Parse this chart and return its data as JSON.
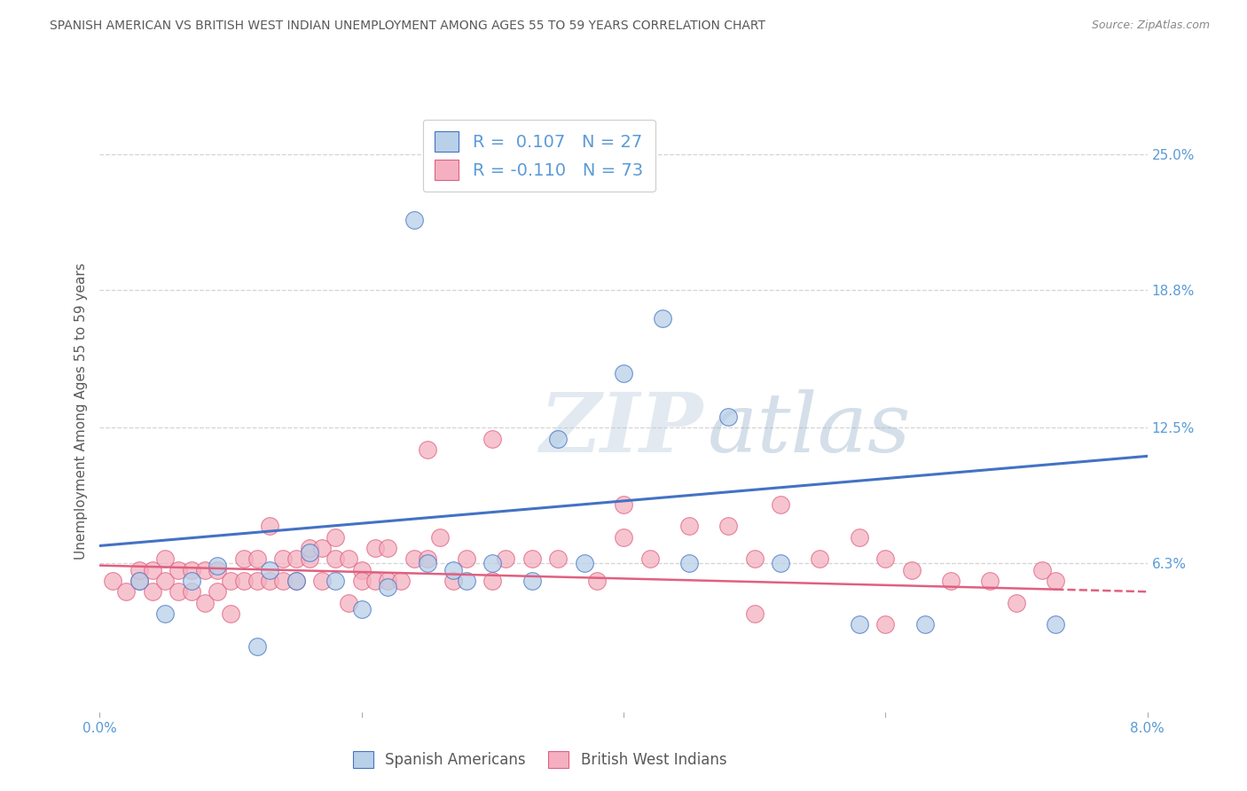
{
  "title": "SPANISH AMERICAN VS BRITISH WEST INDIAN UNEMPLOYMENT AMONG AGES 55 TO 59 YEARS CORRELATION CHART",
  "source": "Source: ZipAtlas.com",
  "ylabel": "Unemployment Among Ages 55 to 59 years",
  "xlim": [
    0.0,
    0.08
  ],
  "ylim": [
    -0.005,
    0.27
  ],
  "xticks": [
    0.0,
    0.02,
    0.04,
    0.06,
    0.08
  ],
  "xticklabels": [
    "0.0%",
    "",
    "",
    "",
    "8.0%"
  ],
  "ytick_positions": [
    0.063,
    0.125,
    0.188,
    0.25
  ],
  "ytick_labels": [
    "6.3%",
    "12.5%",
    "18.8%",
    "25.0%"
  ],
  "legend1_label": "Spanish Americans",
  "legend2_label": "British West Indians",
  "r1": "0.107",
  "n1": "27",
  "r2": "-0.110",
  "n2": "73",
  "color_blue_fill": "#b8d0e8",
  "color_blue_edge": "#4472c4",
  "color_pink_fill": "#f4b0c0",
  "color_pink_edge": "#e06080",
  "color_axis_text": "#5b9bd5",
  "color_dark_text": "#595959",
  "background_color": "#ffffff",
  "grid_color": "#d0d0d0",
  "source_color": "#888888",
  "blue_line_y0": 0.071,
  "blue_line_y1": 0.112,
  "pink_line_y0": 0.062,
  "pink_line_y1": 0.05,
  "spanish_x": [
    0.003,
    0.005,
    0.007,
    0.009,
    0.012,
    0.013,
    0.015,
    0.016,
    0.018,
    0.02,
    0.022,
    0.024,
    0.025,
    0.027,
    0.028,
    0.03,
    0.033,
    0.035,
    0.037,
    0.04,
    0.043,
    0.045,
    0.048,
    0.052,
    0.058,
    0.063,
    0.073
  ],
  "spanish_y": [
    0.055,
    0.04,
    0.055,
    0.062,
    0.025,
    0.06,
    0.055,
    0.068,
    0.055,
    0.042,
    0.052,
    0.22,
    0.063,
    0.06,
    0.055,
    0.063,
    0.055,
    0.12,
    0.063,
    0.15,
    0.175,
    0.063,
    0.13,
    0.063,
    0.035,
    0.035,
    0.035
  ],
  "bwi_x": [
    0.001,
    0.002,
    0.003,
    0.003,
    0.004,
    0.004,
    0.005,
    0.005,
    0.006,
    0.006,
    0.007,
    0.007,
    0.008,
    0.008,
    0.009,
    0.009,
    0.01,
    0.01,
    0.011,
    0.011,
    0.012,
    0.012,
    0.013,
    0.013,
    0.014,
    0.014,
    0.015,
    0.015,
    0.016,
    0.016,
    0.017,
    0.017,
    0.018,
    0.018,
    0.019,
    0.019,
    0.02,
    0.02,
    0.021,
    0.021,
    0.022,
    0.022,
    0.023,
    0.024,
    0.025,
    0.026,
    0.027,
    0.028,
    0.03,
    0.031,
    0.033,
    0.035,
    0.038,
    0.04,
    0.042,
    0.045,
    0.048,
    0.05,
    0.052,
    0.055,
    0.058,
    0.06,
    0.062,
    0.065,
    0.068,
    0.07,
    0.072,
    0.073,
    0.025,
    0.03,
    0.04,
    0.05,
    0.06
  ],
  "bwi_y": [
    0.055,
    0.05,
    0.055,
    0.06,
    0.06,
    0.05,
    0.055,
    0.065,
    0.06,
    0.05,
    0.05,
    0.06,
    0.06,
    0.045,
    0.05,
    0.06,
    0.055,
    0.04,
    0.065,
    0.055,
    0.055,
    0.065,
    0.055,
    0.08,
    0.055,
    0.065,
    0.055,
    0.065,
    0.065,
    0.07,
    0.07,
    0.055,
    0.075,
    0.065,
    0.065,
    0.045,
    0.06,
    0.055,
    0.055,
    0.07,
    0.07,
    0.055,
    0.055,
    0.065,
    0.065,
    0.075,
    0.055,
    0.065,
    0.055,
    0.065,
    0.065,
    0.065,
    0.055,
    0.09,
    0.065,
    0.08,
    0.08,
    0.065,
    0.09,
    0.065,
    0.075,
    0.065,
    0.06,
    0.055,
    0.055,
    0.045,
    0.06,
    0.055,
    0.115,
    0.12,
    0.075,
    0.04,
    0.035
  ]
}
